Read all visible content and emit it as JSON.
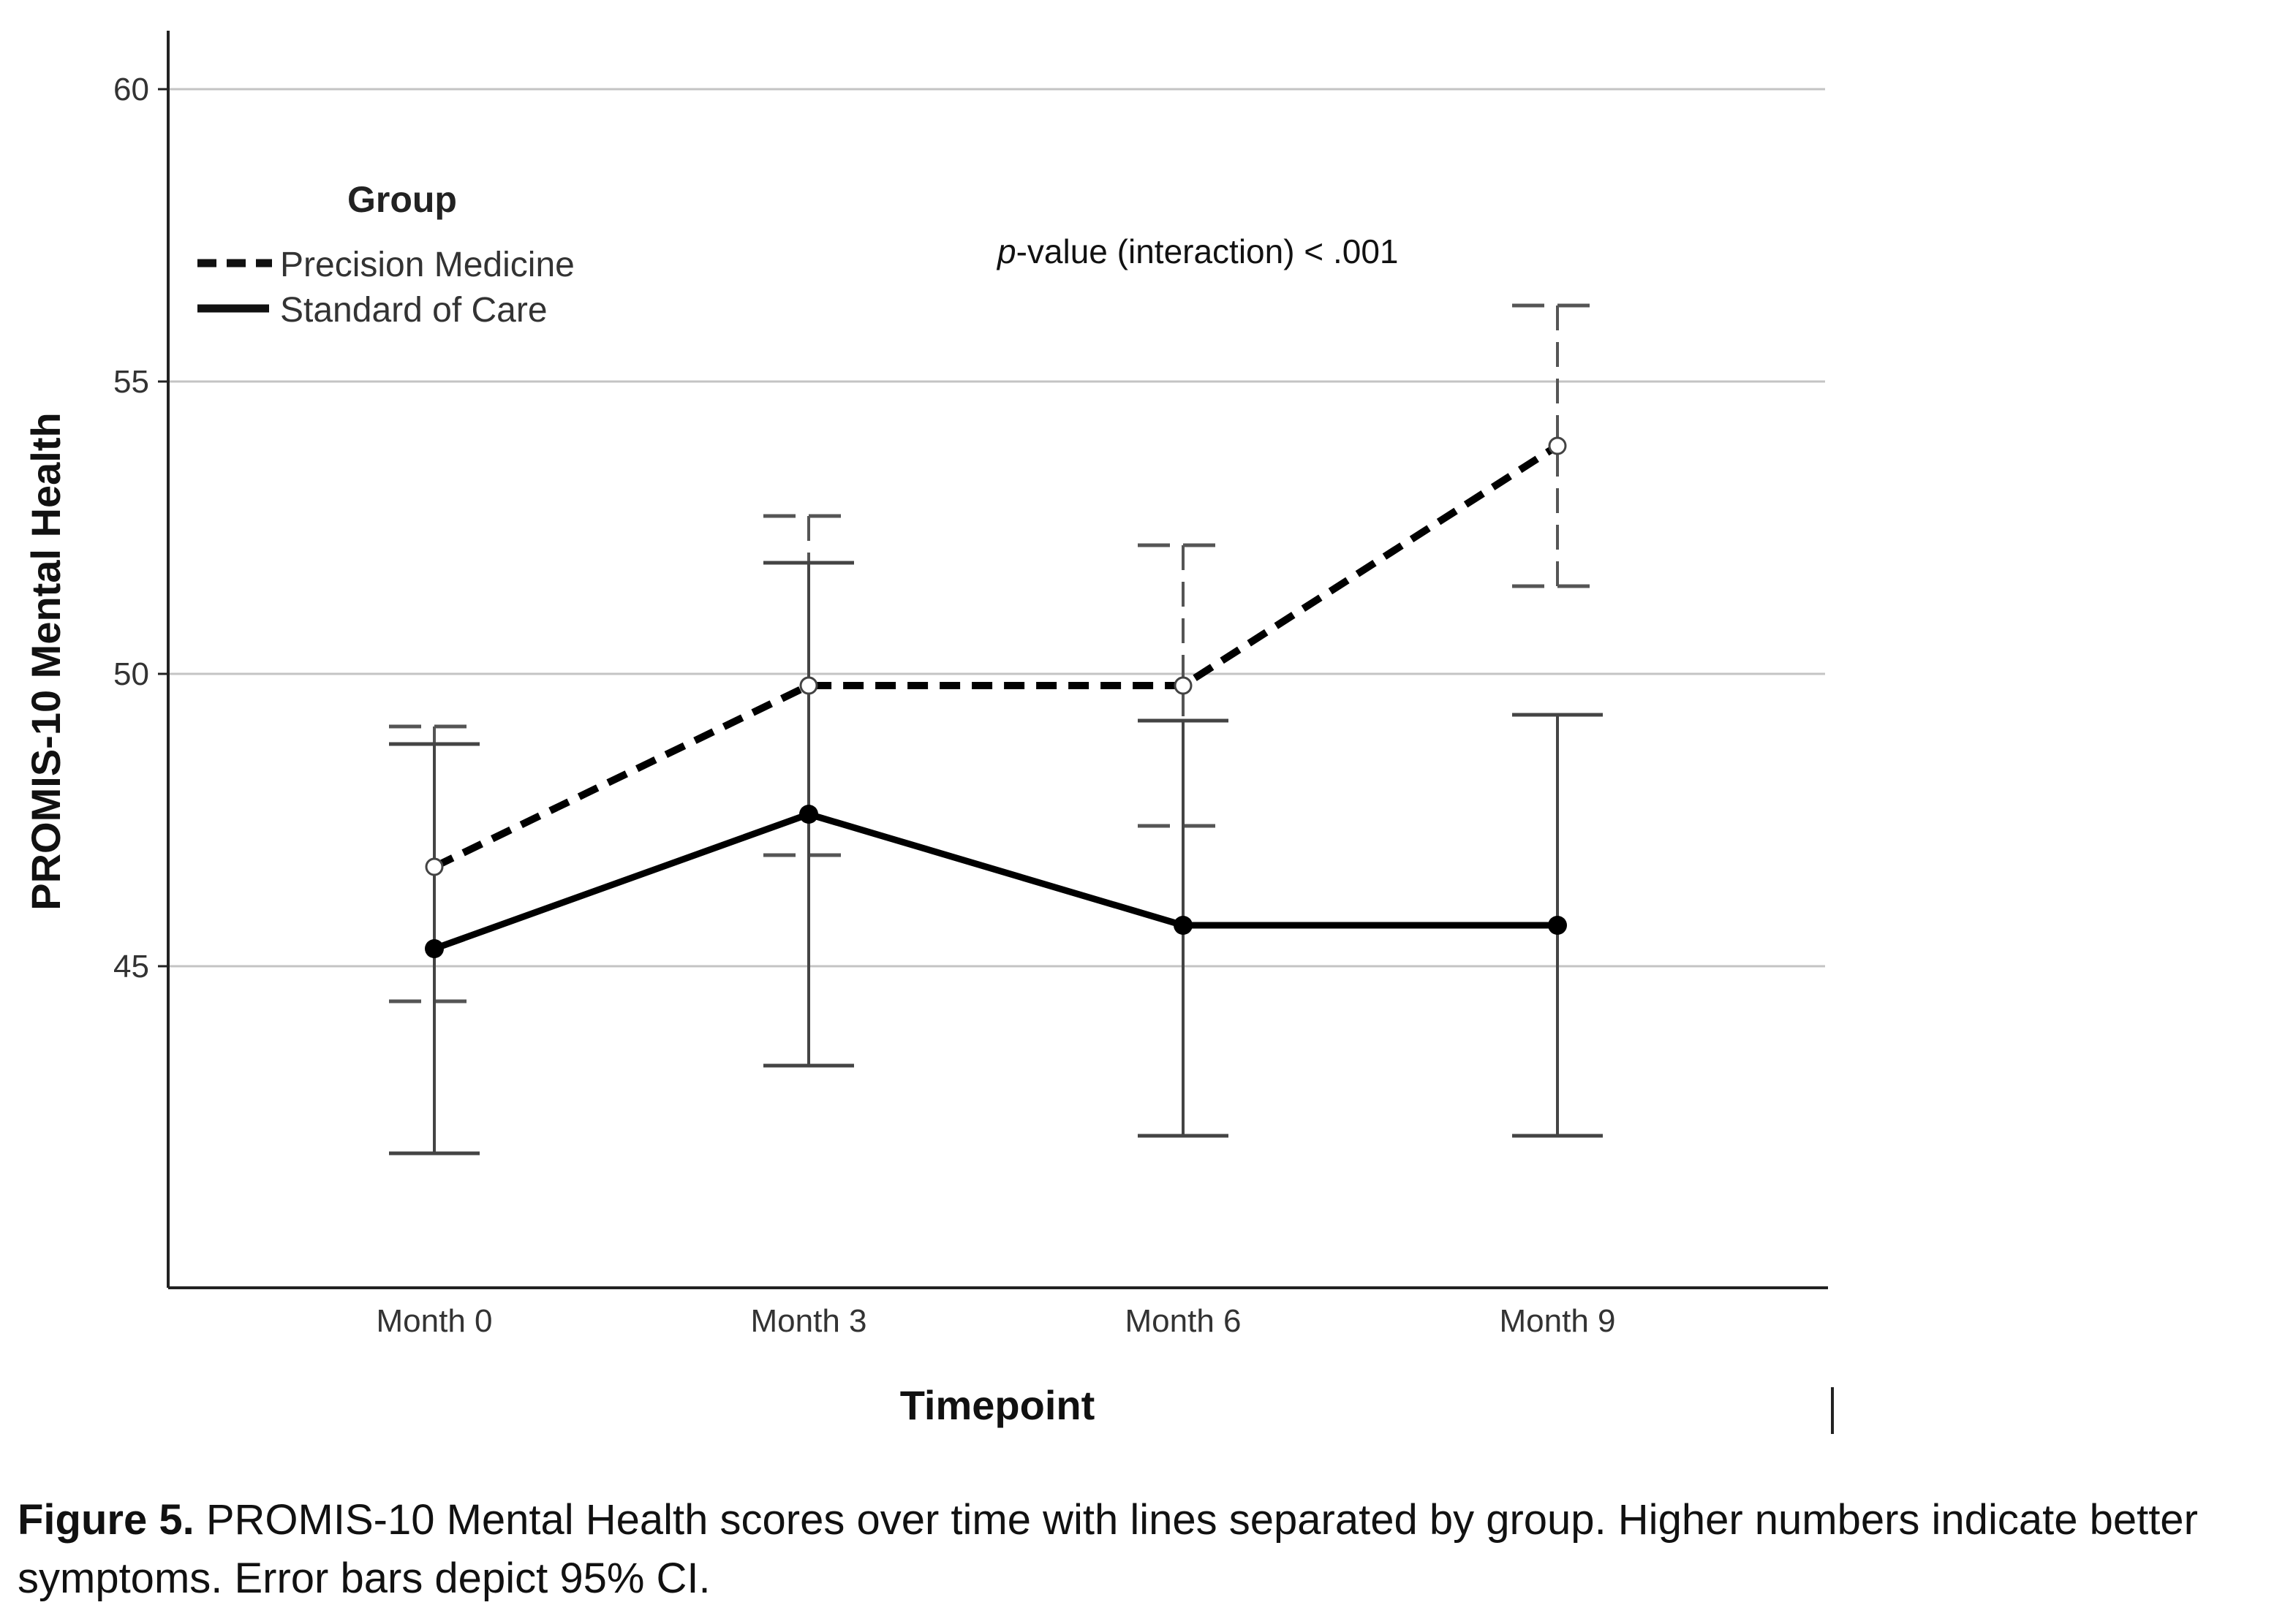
{
  "chart_data": {
    "type": "line",
    "title": "",
    "xlabel": "Timepoint",
    "ylabel": "PROMIS-10 Mental Health",
    "categories": [
      "Month 0",
      "Month 3",
      "Month 6",
      "Month 9"
    ],
    "ylim": [
      39.5,
      61
    ],
    "yticks": [
      45,
      50,
      55,
      60
    ],
    "grid": true,
    "legend": {
      "title": "Group",
      "position": "top-left",
      "entries": [
        "Precision Medicine",
        "Standard of Care"
      ]
    },
    "annotation": {
      "italic": "p",
      "text": "-value (interaction) < .001"
    },
    "series": [
      {
        "name": "Precision Medicine",
        "style": "dashed",
        "marker": "open-circle",
        "values": [
          46.7,
          49.8,
          49.8,
          53.9
        ],
        "ci_lower": [
          44.4,
          46.9,
          47.4,
          51.5
        ],
        "ci_upper": [
          49.1,
          52.7,
          52.2,
          56.3
        ]
      },
      {
        "name": "Standard of Care",
        "style": "solid",
        "marker": "filled-circle",
        "values": [
          45.3,
          47.6,
          45.7,
          45.7
        ],
        "ci_lower": [
          41.8,
          43.3,
          42.1,
          42.1
        ],
        "ci_upper": [
          48.8,
          51.9,
          49.2,
          49.3
        ]
      }
    ]
  },
  "caption": {
    "label": "Figure 5.",
    "text": " PROMIS-10 Mental Health scores over time with lines separated by group. Higher numbers indicate better symptoms. Error bars depict 95% CI."
  }
}
